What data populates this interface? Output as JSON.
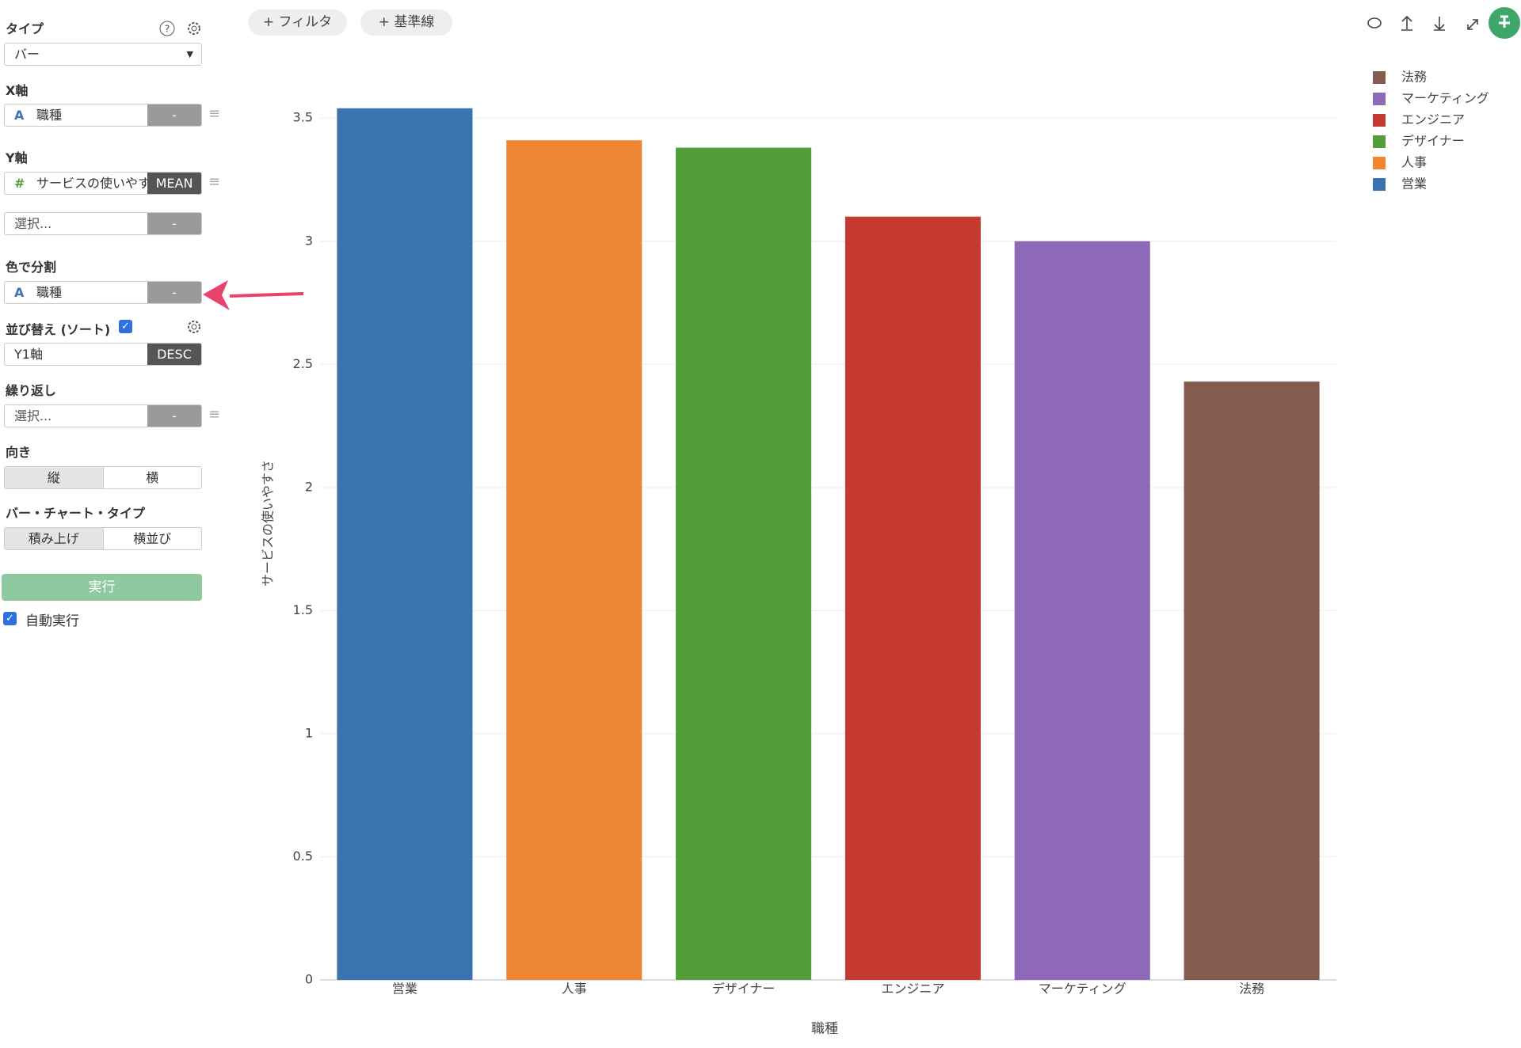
{
  "toolbar": {
    "filter": "+ フィルタ",
    "reference_line": "+ 基準線"
  },
  "sidebar": {
    "type_label": "タイプ",
    "type_value": "バー",
    "x_axis_label": "X軸",
    "x_axis_icon": "A",
    "x_axis_field": "職種",
    "x_axis_agg": "-",
    "y_axis_label": "Y軸",
    "y_axis_icon": "#",
    "y_axis_field": "サービスの使いやすさ",
    "y_axis_agg": "MEAN",
    "y2_field": "選択...",
    "y2_agg": "-",
    "color_label": "色で分割",
    "color_icon": "A",
    "color_field": "職種",
    "color_agg": "-",
    "sort_label": "並び替え (ソート)",
    "sort_field": "Y1軸",
    "sort_order": "DESC",
    "repeat_label": "繰り返し",
    "repeat_field": "選択...",
    "repeat_agg": "-",
    "orientation_label": "向き",
    "orientation_options": [
      "縦",
      "横"
    ],
    "bar_type_label": "バー・チャート・タイプ",
    "bar_type_options": [
      "積み上げ",
      "横並び"
    ],
    "run_button": "実行",
    "auto_run": "自動実行"
  },
  "chart_data": {
    "type": "bar",
    "x_label": "職種",
    "y_label": "サービスの使いやすさ",
    "categories": [
      "営業",
      "人事",
      "デザイナー",
      "エンジニア",
      "マーケティング",
      "法務"
    ],
    "values": [
      3.54,
      3.41,
      3.38,
      3.1,
      3.0,
      2.43
    ],
    "colors": [
      "#3b73af",
      "#ef8633",
      "#529e3b",
      "#c43a31",
      "#8d69b8",
      "#855b4f"
    ],
    "ylim": [
      0,
      3.7
    ],
    "yticks": [
      0,
      0.5,
      1,
      1.5,
      2,
      2.5,
      3,
      3.5
    ],
    "grid": true,
    "legend": "top-right"
  }
}
